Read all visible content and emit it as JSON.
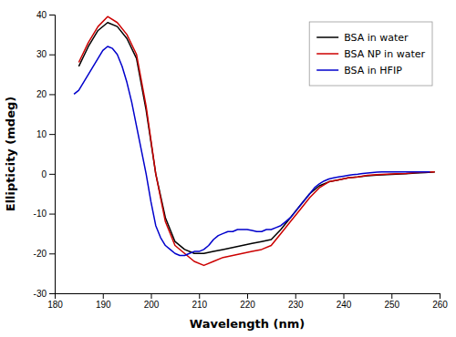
{
  "chart_data": {
    "type": "line",
    "xlabel": "Wavelength (nm)",
    "ylabel": "Ellipticity (mdeg)",
    "xlim": [
      180,
      260
    ],
    "ylim": [
      -30,
      40
    ],
    "xticks": [
      180,
      190,
      200,
      210,
      220,
      230,
      240,
      250,
      260
    ],
    "yticks": [
      -30,
      -20,
      -10,
      0,
      10,
      20,
      30,
      40
    ],
    "legend": "upper right",
    "series": [
      {
        "name": "BSA in water",
        "color": "#000000",
        "x": [
          185,
          187,
          189,
          191,
          193,
          195,
          197,
          199,
          201,
          203,
          205,
          207,
          209,
          211,
          213,
          215,
          217,
          219,
          221,
          223,
          225,
          227,
          229,
          231,
          233,
          235,
          237,
          239,
          241,
          243,
          245,
          247,
          249,
          251,
          253,
          255,
          257,
          259
        ],
        "values": [
          27,
          32,
          36,
          38,
          37,
          34,
          29,
          16,
          0,
          -11,
          -17,
          -19,
          -20,
          -20,
          -19.5,
          -19,
          -18.5,
          -18,
          -17.5,
          -17,
          -16.5,
          -14,
          -11,
          -8,
          -5,
          -3,
          -2,
          -1.5,
          -1,
          -0.8,
          -0.5,
          -0.3,
          -0.2,
          -0.1,
          0,
          0.2,
          0.3,
          0.5
        ]
      },
      {
        "name": "BSA NP in water",
        "color": "#cc0000",
        "x": [
          185,
          187,
          189,
          191,
          193,
          195,
          197,
          199,
          201,
          203,
          205,
          207,
          209,
          211,
          213,
          215,
          217,
          219,
          221,
          223,
          225,
          227,
          229,
          231,
          233,
          235,
          237,
          239,
          241,
          243,
          245,
          247,
          249,
          251,
          253,
          255,
          257,
          259
        ],
        "values": [
          28,
          33,
          37,
          39.5,
          38,
          35,
          30,
          17,
          0,
          -12,
          -18,
          -20,
          -22,
          -23,
          -22,
          -21,
          -20.5,
          -20,
          -19.5,
          -19,
          -18,
          -15,
          -12,
          -9,
          -6,
          -3.5,
          -2,
          -1.5,
          -1,
          -0.8,
          -0.4,
          -0.2,
          -0.1,
          0,
          0.1,
          0.3,
          0.4,
          0.5
        ]
      },
      {
        "name": "BSA in HFIP",
        "color": "#0000cc",
        "x": [
          184,
          185,
          186,
          187,
          188,
          189,
          190,
          191,
          192,
          193,
          194,
          195,
          196,
          197,
          198,
          199,
          200,
          201,
          202,
          203,
          204,
          205,
          206,
          207,
          208,
          209,
          210,
          211,
          212,
          213,
          214,
          215,
          216,
          217,
          218,
          219,
          220,
          221,
          222,
          223,
          224,
          225,
          226,
          227,
          228,
          229,
          230,
          231,
          232,
          233,
          234,
          235,
          236,
          237,
          238,
          239,
          240,
          241,
          242,
          243,
          244,
          245,
          246,
          247,
          248,
          249,
          250,
          251,
          252,
          253,
          254,
          255,
          256,
          257,
          258
        ],
        "values": [
          20,
          21,
          23,
          25,
          27,
          29,
          31,
          32,
          31.5,
          30,
          27,
          23,
          18,
          12,
          6,
          0,
          -7,
          -13,
          -16,
          -18,
          -19,
          -20,
          -20.5,
          -20.5,
          -20,
          -19.5,
          -19.5,
          -19,
          -18,
          -16.5,
          -15.5,
          -15,
          -14.5,
          -14.5,
          -14,
          -14,
          -14,
          -14.2,
          -14.5,
          -14.5,
          -14,
          -14,
          -13.5,
          -13,
          -12,
          -11,
          -9.5,
          -8,
          -6.5,
          -5,
          -3.5,
          -2.5,
          -1.8,
          -1.3,
          -1,
          -0.8,
          -0.6,
          -0.4,
          -0.2,
          -0.1,
          0.1,
          0.2,
          0.3,
          0.4,
          0.5,
          0.5,
          0.5,
          0.5,
          0.5,
          0.5,
          0.5,
          0.5,
          0.5,
          0.5,
          0.5
        ]
      }
    ]
  }
}
